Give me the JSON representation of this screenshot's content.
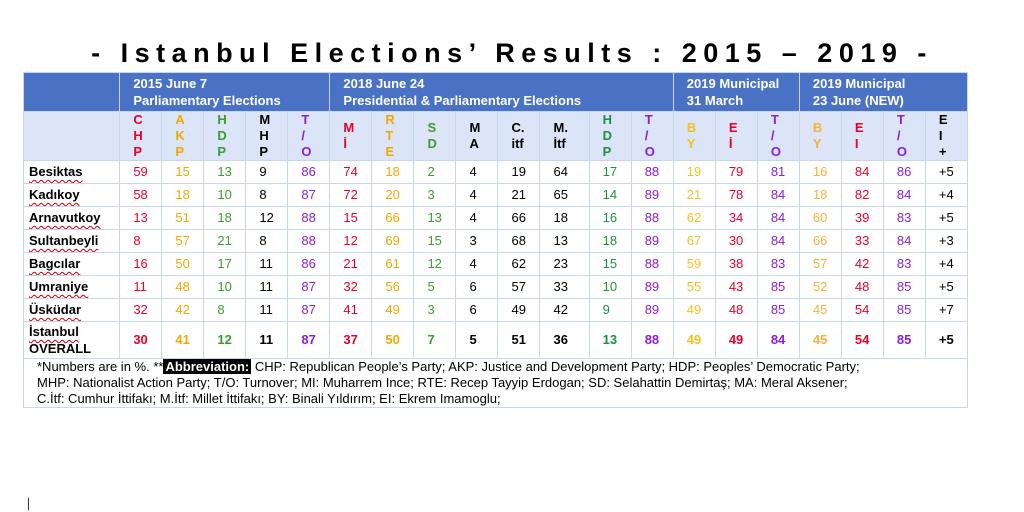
{
  "title": "-   Istanbul   Elections’  Results :   2015 – 2019  -",
  "headers": {
    "g1_line1": "2015 June 7",
    "g1_line2": "Parliamentary Elections",
    "g2_line1": "2018 June 24",
    "g2_line2": "Presidential & Parliamentary Elections",
    "g3_line1": "2019 Municipal",
    "g3_line2": "31 March",
    "g4_line1": "2019 Municipal",
    "g4_line2": "23 June (NEW)"
  },
  "abbr": [
    {
      "l1": "C",
      "l2": "H",
      "l3": "P"
    },
    {
      "l1": "A",
      "l2": "K",
      "l3": "P"
    },
    {
      "l1": "H",
      "l2": "D",
      "l3": "P"
    },
    {
      "l1": "M",
      "l2": "H",
      "l3": "P"
    },
    {
      "l1": "T",
      "l2": "/",
      "l3": "O"
    },
    {
      "l1": "M",
      "l2": "İ",
      "l3": ""
    },
    {
      "l1": "R",
      "l2": "T",
      "l3": "E"
    },
    {
      "l1": "S",
      "l2": "D",
      "l3": ""
    },
    {
      "l1": "M",
      "l2": "A",
      "l3": ""
    },
    {
      "l1": "C.",
      "l2": "itf",
      "l3": ""
    },
    {
      "l1": "M.",
      "l2": "İtf",
      "l3": ""
    },
    {
      "l1": "H",
      "l2": "D",
      "l3": "P"
    },
    {
      "l1": "T",
      "l2": "/",
      "l3": "O"
    },
    {
      "l1": "B",
      "l2": "Y",
      "l3": ""
    },
    {
      "l1": "E",
      "l2": "İ",
      "l3": ""
    },
    {
      "l1": "T",
      "l2": "/",
      "l3": "O"
    },
    {
      "l1": "B",
      "l2": "Y",
      "l3": ""
    },
    {
      "l1": "E",
      "l2": "I",
      "l3": ""
    },
    {
      "l1": "T",
      "l2": "/",
      "l3": "O"
    },
    {
      "l1": "E",
      "l2": "I",
      "l3": "+"
    }
  ],
  "rows": [
    {
      "name": "Besiktas",
      "v": [
        "59",
        "15",
        "13",
        "9",
        "86",
        "74",
        "18",
        "2",
        "4",
        "19",
        "64",
        "17",
        "88",
        "19",
        "79",
        "81",
        "16",
        "84",
        "86",
        "+5"
      ]
    },
    {
      "name": "Kadıkoy",
      "v": [
        "58",
        "18",
        "10",
        "8",
        "87",
        "72",
        "20",
        "3",
        "4",
        "21",
        "65",
        "14",
        "89",
        "21",
        "78",
        "84",
        "18",
        "82",
        "84",
        "+4"
      ]
    },
    {
      "name": "Arnavutkoy",
      "v": [
        "13",
        "51",
        "18",
        "12",
        "88",
        "15",
        "66",
        "13",
        "4",
        "66",
        "18",
        "16",
        "88",
        "62",
        "34",
        "84",
        "60",
        "39",
        "83",
        "+5"
      ]
    },
    {
      "name": "Sultanbeyli",
      "v": [
        "8",
        "57",
        "21",
        "8",
        "88",
        "12",
        "69",
        "15",
        "3",
        "68",
        "13",
        "18",
        "89",
        "67",
        "30",
        "84",
        "66",
        "33",
        "84",
        "+3"
      ]
    },
    {
      "name": "Bagcılar",
      "v": [
        "16",
        "50",
        "17",
        "11",
        "86",
        "21",
        "61",
        "12",
        "4",
        "62",
        "23",
        "15",
        "88",
        "59",
        "38",
        "83",
        "57",
        "42",
        "83",
        "+4"
      ]
    },
    {
      "name": "Umraniye",
      "v": [
        "11",
        "48",
        "10",
        "11",
        "87",
        "32",
        "56",
        "5",
        "6",
        "57",
        "33",
        "10",
        "89",
        "55",
        "43",
        "85",
        "52",
        "48",
        "85",
        "+5"
      ]
    },
    {
      "name": "Üsküdar",
      "v": [
        "32",
        "42",
        "8",
        "11",
        "87",
        "41",
        "49",
        "3",
        "6",
        "49",
        "42",
        "9",
        "89",
        "49",
        "48",
        "85",
        "45",
        "54",
        "85",
        "+7"
      ]
    }
  ],
  "overall": {
    "name_l1": "İstanbul",
    "name_l2": "OVERALL",
    "v": [
      "30",
      "41",
      "12",
      "11",
      "87",
      "37",
      "50",
      "7",
      "5",
      "51",
      "36",
      "13",
      "88",
      "49",
      "49",
      "84",
      "45",
      "54",
      "85",
      "+5"
    ]
  },
  "notes": {
    "line1_a": "*Numbers are in %.  **",
    "abbrev_label": "Abbreviation:",
    "line1_b": " CHP: Republican People’s Party; AKP: Justice and Development Party; HDP: Peoples’ Democratic Party;",
    "line2": "MHP: Nationalist Action Party; T/O: Turnover; MI: Muharrem Ince;  RTE: Recep Tayyip Erdogan; SD: Selahattin Demirtaş; MA: Meral Aksener;",
    "line3": "C.İtf: Cumhur İttifakı; M.İtf: Millet İttifakı;  BY: Binali Yıldırım; EI: Ekrem Imamoglu;"
  },
  "colors": {
    "header_bg": "#4a72c4",
    "abbr_bg": "#dbe5f7",
    "border": "#c9d6f2",
    "columns": [
      "red",
      "orange",
      "green",
      "black",
      "purple",
      "red",
      "orange",
      "green",
      "black",
      "black",
      "black",
      "teal",
      "purple",
      "yellow",
      "red",
      "purple",
      "ltorange",
      "red",
      "purple",
      "black"
    ]
  }
}
